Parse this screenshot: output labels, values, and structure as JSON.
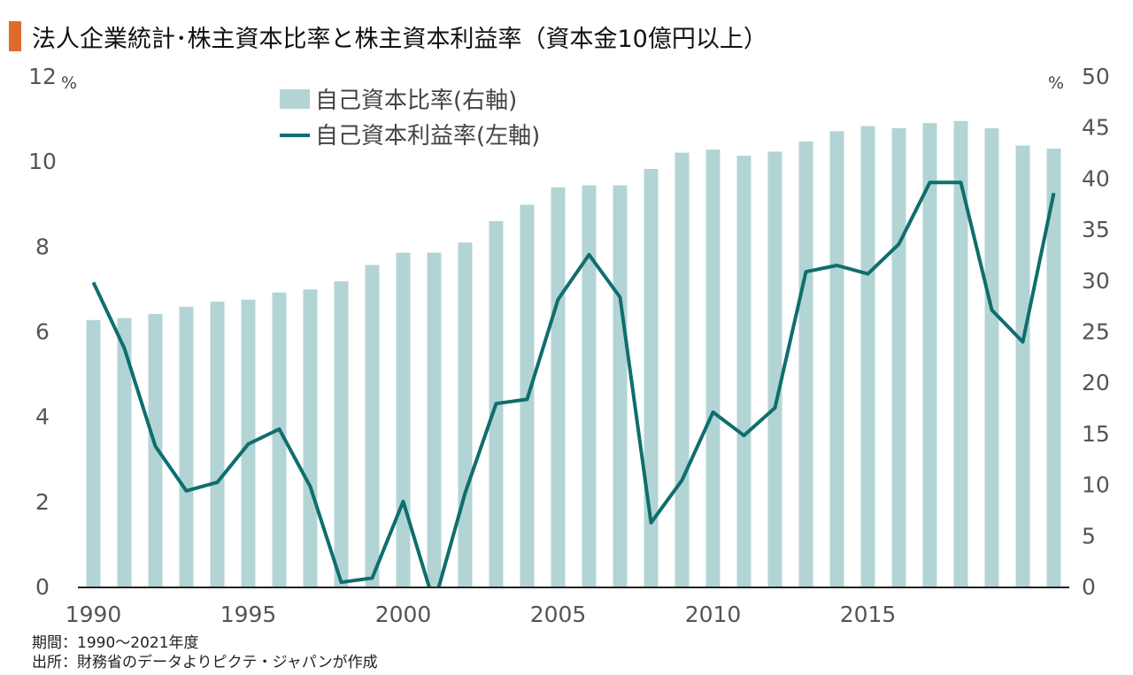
{
  "header": {
    "title": "法人企業統計･株主資本比率と株主資本利益率（資本金10億円以上）"
  },
  "footer": {
    "period": "期間：1990～2021年度",
    "source": "出所：財務省のデータよりピクテ・ジャパンが作成"
  },
  "colors": {
    "bar": "#b3d4d4",
    "line": "#0f6e6e",
    "title_accent": "#e06a2b"
  },
  "chart_data": {
    "type": "bar+line",
    "x": [
      1990,
      1991,
      1992,
      1993,
      1994,
      1995,
      1996,
      1997,
      1998,
      1999,
      2000,
      2001,
      2002,
      2003,
      2004,
      2005,
      2006,
      2007,
      2008,
      2009,
      2010,
      2011,
      2012,
      2013,
      2014,
      2015,
      2016,
      2017,
      2018,
      2019,
      2020,
      2021
    ],
    "x_tick_labels": [
      "1990",
      "1995",
      "2000",
      "2005",
      "2010",
      "2015"
    ],
    "left_axis": {
      "unit": "%",
      "range": [
        0,
        12
      ],
      "ticks": [
        "0",
        "2",
        "4",
        "6",
        "8",
        "10",
        "12"
      ]
    },
    "right_axis": {
      "unit": "%",
      "range": [
        0,
        50
      ],
      "ticks": [
        "0",
        "5",
        "10",
        "15",
        "20",
        "25",
        "30",
        "35",
        "40",
        "45",
        "50"
      ]
    },
    "series": [
      {
        "name": "自己資本比率(右軸)",
        "kind": "bar",
        "axis": "right",
        "values": [
          26.1,
          26.3,
          26.7,
          27.4,
          27.9,
          28.1,
          28.8,
          29.1,
          29.9,
          31.5,
          32.7,
          32.7,
          33.7,
          35.8,
          37.4,
          39.1,
          39.3,
          39.3,
          40.9,
          42.5,
          42.8,
          42.2,
          42.6,
          43.6,
          44.6,
          45.1,
          44.9,
          45.4,
          45.6,
          44.9,
          43.2,
          42.9
        ]
      },
      {
        "name": "自己資本利益率(左軸)",
        "kind": "line",
        "axis": "left",
        "values": [
          7.15,
          5.6,
          3.3,
          2.25,
          2.45,
          3.35,
          3.7,
          2.35,
          0.1,
          0.2,
          2.0,
          -0.4,
          2.2,
          4.3,
          4.4,
          6.75,
          7.8,
          6.8,
          1.5,
          2.5,
          4.1,
          3.55,
          4.2,
          7.4,
          7.55,
          7.35,
          8.05,
          9.5,
          9.5,
          6.5,
          5.75,
          9.25
        ]
      }
    ]
  }
}
